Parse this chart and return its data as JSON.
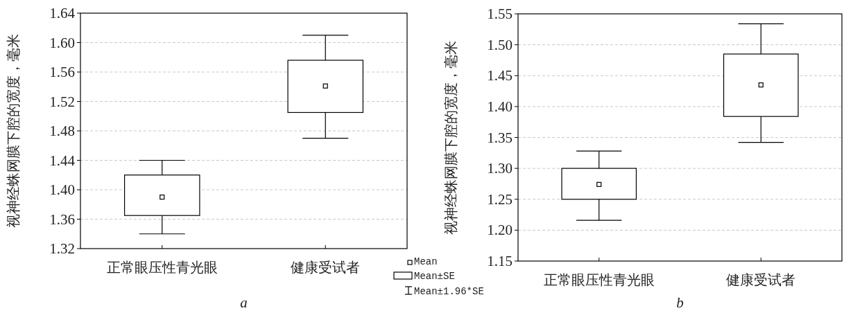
{
  "chart_data": [
    {
      "type": "box",
      "categories": [
        "正常眼压性青光眼",
        "健康受试者"
      ],
      "ylabel": "视神经蛛网膜下腔的宽度，毫米",
      "xlabel": "a",
      "ylim": [
        1.32,
        1.64
      ],
      "yticks": [
        {
          "value": 1.32,
          "label": "1.32"
        },
        {
          "value": 1.36,
          "label": "1.36"
        },
        {
          "value": 1.4,
          "label": "1.40"
        },
        {
          "value": 1.44,
          "label": "1.44"
        },
        {
          "value": 1.48,
          "label": "1.48"
        },
        {
          "value": 1.52,
          "label": "1.52"
        },
        {
          "value": 1.56,
          "label": "1.56"
        },
        {
          "value": 1.6,
          "label": "1.60"
        },
        {
          "value": 1.64,
          "label": "1.64"
        }
      ],
      "grid": "y",
      "boxes": [
        {
          "low": 1.34,
          "q1": 1.365,
          "q3": 1.42,
          "high": 1.44,
          "mean": 1.39
        },
        {
          "low": 1.47,
          "q1": 1.505,
          "q3": 1.576,
          "high": 1.61,
          "mean": 1.541
        }
      ],
      "annotations": [
        "Mean",
        "Mean±SE",
        "Mean±1.96*SE"
      ]
    },
    {
      "type": "box",
      "categories": [
        "正常眼压性青光眼",
        "健康受试者"
      ],
      "ylabel": "视神经蛛网膜下腔的宽度，毫米",
      "xlabel": "b",
      "ylim": [
        1.15,
        1.55
      ],
      "yticks": [
        {
          "value": 1.15,
          "label": "1.15"
        },
        {
          "value": 1.2,
          "label": "1.20"
        },
        {
          "value": 1.25,
          "label": "1.25"
        },
        {
          "value": 1.3,
          "label": "1.30"
        },
        {
          "value": 1.35,
          "label": "1.35"
        },
        {
          "value": 1.4,
          "label": "1.40"
        },
        {
          "value": 1.45,
          "label": "1.45"
        },
        {
          "value": 1.5,
          "label": "1.50"
        },
        {
          "value": 1.55,
          "label": "1.55"
        }
      ],
      "grid": "y",
      "boxes": [
        {
          "low": 1.216,
          "q1": 1.25,
          "q3": 1.3,
          "high": 1.328,
          "mean": 1.274
        },
        {
          "low": 1.342,
          "q1": 1.384,
          "q3": 1.485,
          "high": 1.534,
          "mean": 1.435
        }
      ]
    }
  ]
}
